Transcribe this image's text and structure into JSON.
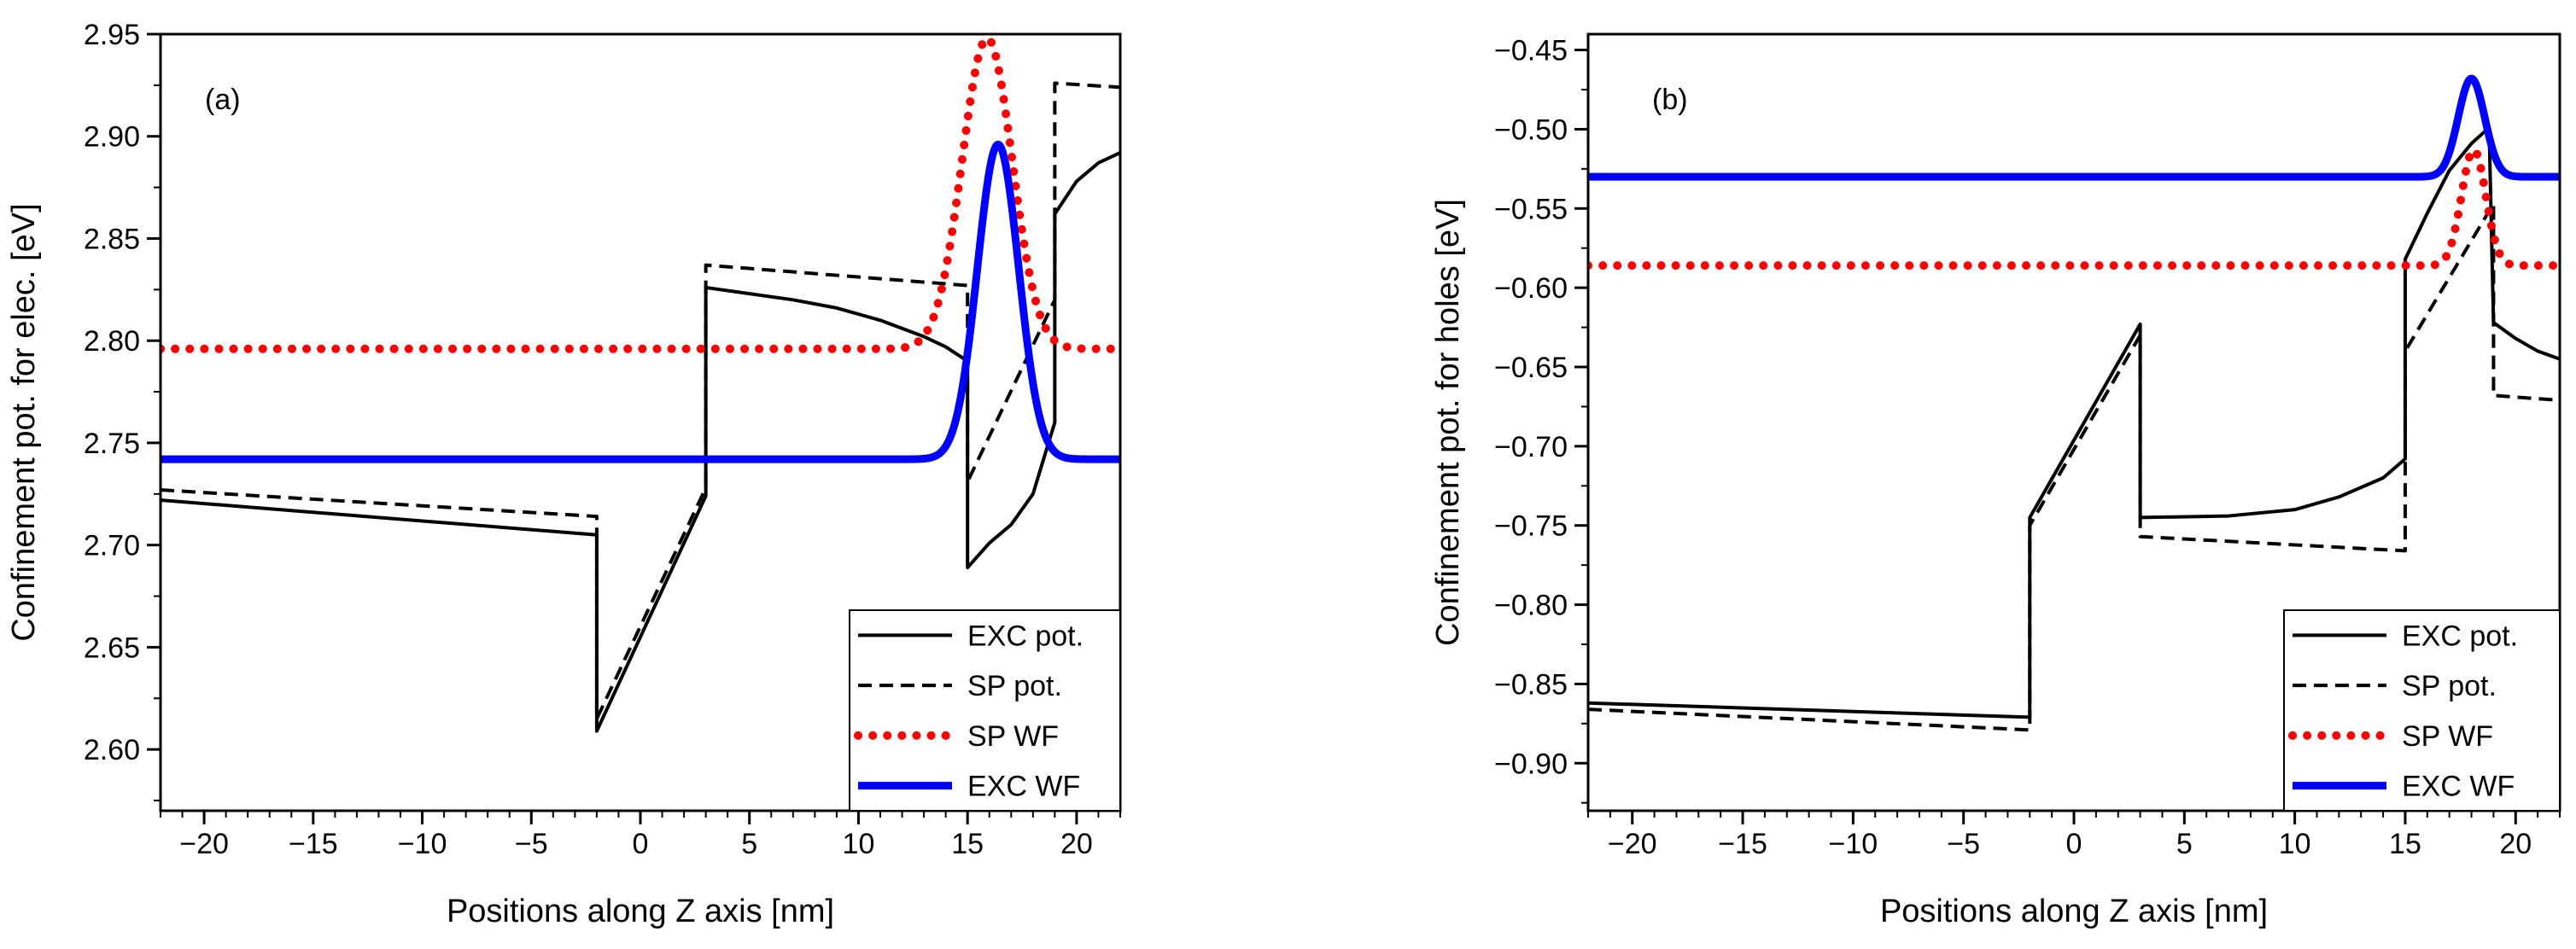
{
  "chart_data": [
    {
      "type": "line",
      "panel_label": "(a)",
      "xlabel": "Positions along Z axis [nm]",
      "ylabel": "Confinement pot. for elec. [eV]",
      "xlim": [
        -22,
        22
      ],
      "ylim": [
        2.57,
        2.95
      ],
      "x_major_ticks": [
        -20,
        -15,
        -10,
        -5,
        0,
        5,
        10,
        15,
        20
      ],
      "x_tick_labels": [
        "−20",
        "−15",
        "−10",
        "−5",
        "0",
        "5",
        "10",
        "15",
        "20"
      ],
      "x_minor_step": 1,
      "y_major_ticks": [
        2.6,
        2.65,
        2.7,
        2.75,
        2.8,
        2.85,
        2.9,
        2.95
      ],
      "y_tick_labels": [
        "2.60",
        "2.65",
        "2.70",
        "2.75",
        "2.80",
        "2.85",
        "2.90",
        "2.95"
      ],
      "y_minor_step": 0.025,
      "grid": false,
      "legend_position": "bottom-right",
      "legend": [
        "EXC pot.",
        "SP pot.",
        "SP WF",
        "EXC WF"
      ],
      "series": [
        {
          "name": "EXC pot.",
          "color": "#000000",
          "style": "solid",
          "points": [
            [
              -22,
              2.722
            ],
            [
              -2,
              2.705
            ],
            [
              -2,
              2.609
            ],
            [
              3,
              2.724
            ],
            [
              3,
              2.826
            ],
            [
              5,
              2.823
            ],
            [
              7,
              2.82
            ],
            [
              9,
              2.816
            ],
            [
              11,
              2.81
            ],
            [
              13,
              2.802
            ],
            [
              14,
              2.797
            ],
            [
              15,
              2.79
            ],
            [
              15,
              2.689
            ],
            [
              16,
              2.701
            ],
            [
              17,
              2.71
            ],
            [
              18,
              2.725
            ],
            [
              19,
              2.76
            ],
            [
              19,
              2.862
            ],
            [
              20,
              2.878
            ],
            [
              21,
              2.887
            ],
            [
              22,
              2.892
            ]
          ]
        },
        {
          "name": "SP pot.",
          "color": "#000000",
          "style": "dashed",
          "points": [
            [
              -22,
              2.727
            ],
            [
              -2,
              2.714
            ],
            [
              -2,
              2.615
            ],
            [
              3,
              2.728
            ],
            [
              3,
              2.837
            ],
            [
              15,
              2.827
            ],
            [
              15,
              2.731
            ],
            [
              19,
              2.82
            ],
            [
              19,
              2.926
            ],
            [
              22,
              2.924
            ]
          ]
        },
        {
          "name": "SP WF",
          "color": "#ff0000",
          "style": "dotted",
          "baseline": 2.796,
          "peak_value": 2.948,
          "peak_center": 15.9,
          "peak_sigma": 1.15
        },
        {
          "name": "EXC WF",
          "color": "#0000ff",
          "style": "solid-thick",
          "baseline": 2.742,
          "peak_value": 2.896,
          "peak_center": 16.4,
          "peak_sigma": 0.95
        }
      ]
    },
    {
      "type": "line",
      "panel_label": "(b)",
      "xlabel": "Positions along Z axis [nm]",
      "ylabel": "Confinement pot. for holes [eV]",
      "xlim": [
        -22,
        22
      ],
      "ylim": [
        -0.93,
        -0.44
      ],
      "x_major_ticks": [
        -20,
        -15,
        -10,
        -5,
        0,
        5,
        10,
        15,
        20
      ],
      "x_tick_labels": [
        "−20",
        "−15",
        "−10",
        "−5",
        "0",
        "5",
        "10",
        "15",
        "20"
      ],
      "x_minor_step": 1,
      "y_major_ticks": [
        -0.9,
        -0.85,
        -0.8,
        -0.75,
        -0.7,
        -0.65,
        -0.6,
        -0.55,
        -0.5,
        -0.45
      ],
      "y_tick_labels": [
        "−0.90",
        "−0.85",
        "−0.80",
        "−0.75",
        "−0.70",
        "−0.65",
        "−0.60",
        "−0.55",
        "−0.50",
        "−0.45"
      ],
      "y_minor_step": 0.025,
      "grid": false,
      "legend_position": "bottom-right",
      "legend": [
        "EXC pot.",
        "SP pot.",
        "SP WF",
        "EXC WF"
      ],
      "series": [
        {
          "name": "EXC pot.",
          "color": "#000000",
          "style": "solid",
          "points": [
            [
              -22,
              -0.862
            ],
            [
              -2,
              -0.871
            ],
            [
              -2,
              -0.745
            ],
            [
              3,
              -0.623
            ],
            [
              3,
              -0.745
            ],
            [
              7,
              -0.744
            ],
            [
              10,
              -0.74
            ],
            [
              12,
              -0.732
            ],
            [
              14,
              -0.72
            ],
            [
              15,
              -0.708
            ],
            [
              15,
              -0.582
            ],
            [
              16,
              -0.553
            ],
            [
              17,
              -0.526
            ],
            [
              18,
              -0.509
            ],
            [
              18.8,
              -0.499
            ],
            [
              19,
              -0.622
            ],
            [
              20,
              -0.632
            ],
            [
              21,
              -0.64
            ],
            [
              22,
              -0.645
            ]
          ]
        },
        {
          "name": "SP pot.",
          "color": "#000000",
          "style": "dashed",
          "points": [
            [
              -22,
              -0.866
            ],
            [
              -2,
              -0.879
            ],
            [
              -2,
              -0.75
            ],
            [
              3,
              -0.63
            ],
            [
              3,
              -0.757
            ],
            [
              15,
              -0.766
            ],
            [
              15,
              -0.64
            ],
            [
              19,
              -0.547
            ],
            [
              19,
              -0.668
            ],
            [
              22,
              -0.671
            ]
          ]
        },
        {
          "name": "SP WF",
          "color": "#ff0000",
          "style": "dotted",
          "baseline": -0.586,
          "peak_value": -0.513,
          "peak_center": 18.1,
          "peak_sigma": 0.55
        },
        {
          "name": "EXC WF",
          "color": "#0000ff",
          "style": "solid-thick",
          "baseline": -0.53,
          "peak_value": -0.468,
          "peak_center": 18.0,
          "peak_sigma": 0.6
        }
      ]
    }
  ]
}
